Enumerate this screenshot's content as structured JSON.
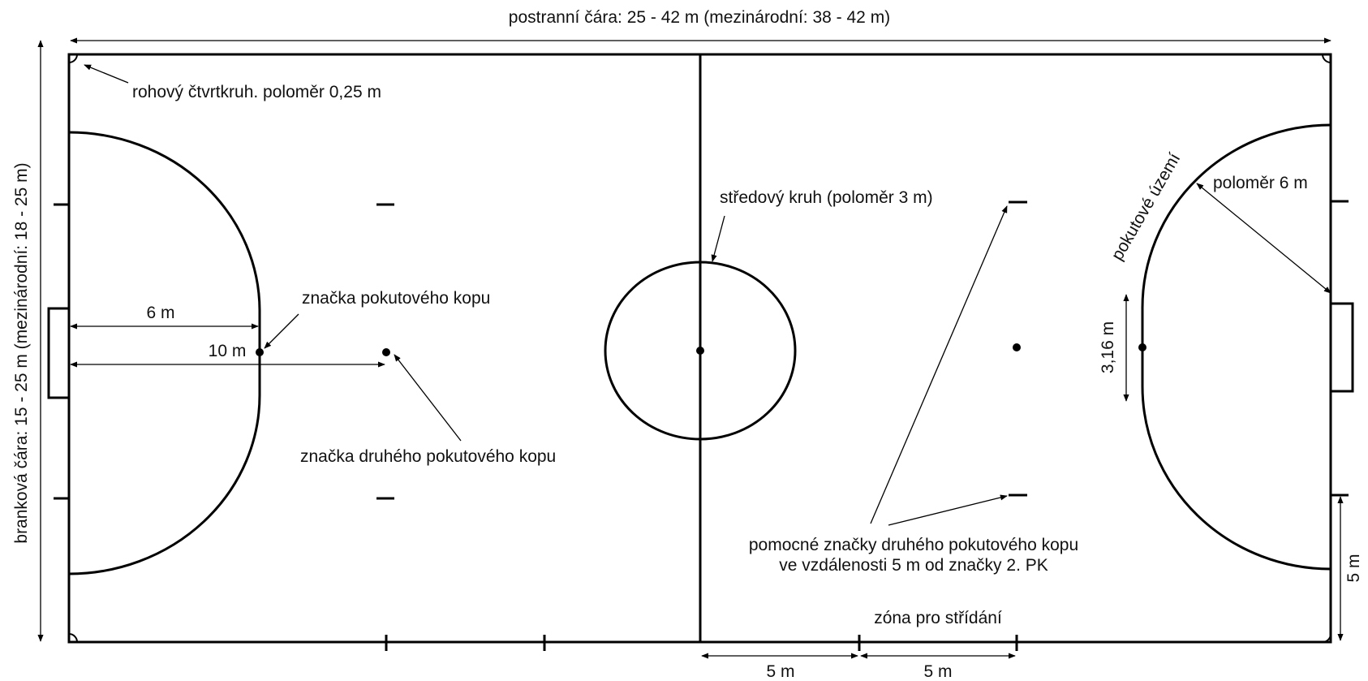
{
  "labels": {
    "sideline": "postranní čára: 25 - 42 m (mezinárodní: 38 - 42 m)",
    "goal_line": "branková čára: 15 - 25 m (mezinárodní: 18 - 25 m)",
    "corner_arc": "rohový čtvrtkruh. poloměr 0,25 m",
    "penalty_mark": "značka pokutového kopu",
    "second_penalty_mark": "značka druhého pokutového kopu",
    "center_circle": "středový kruh (poloměr 3 m)",
    "penalty_area": "pokutové území",
    "radius_6": "poloměr 6 m",
    "goal_width": "3,16 m",
    "dist_6": "6 m",
    "dist_10": "10 m",
    "aux_marks_line1": "pomocné značky druhého pokutového kopu",
    "aux_marks_line2": "ve vzdálenosti 5 m od značky 2. PK",
    "substitution_zone": "zóna pro střídání",
    "dist_5_left": "5 m",
    "dist_5_right": "5 m",
    "dist_5_side": "5 m"
  },
  "colors": {
    "line": "#000000",
    "background": "#ffffff"
  }
}
